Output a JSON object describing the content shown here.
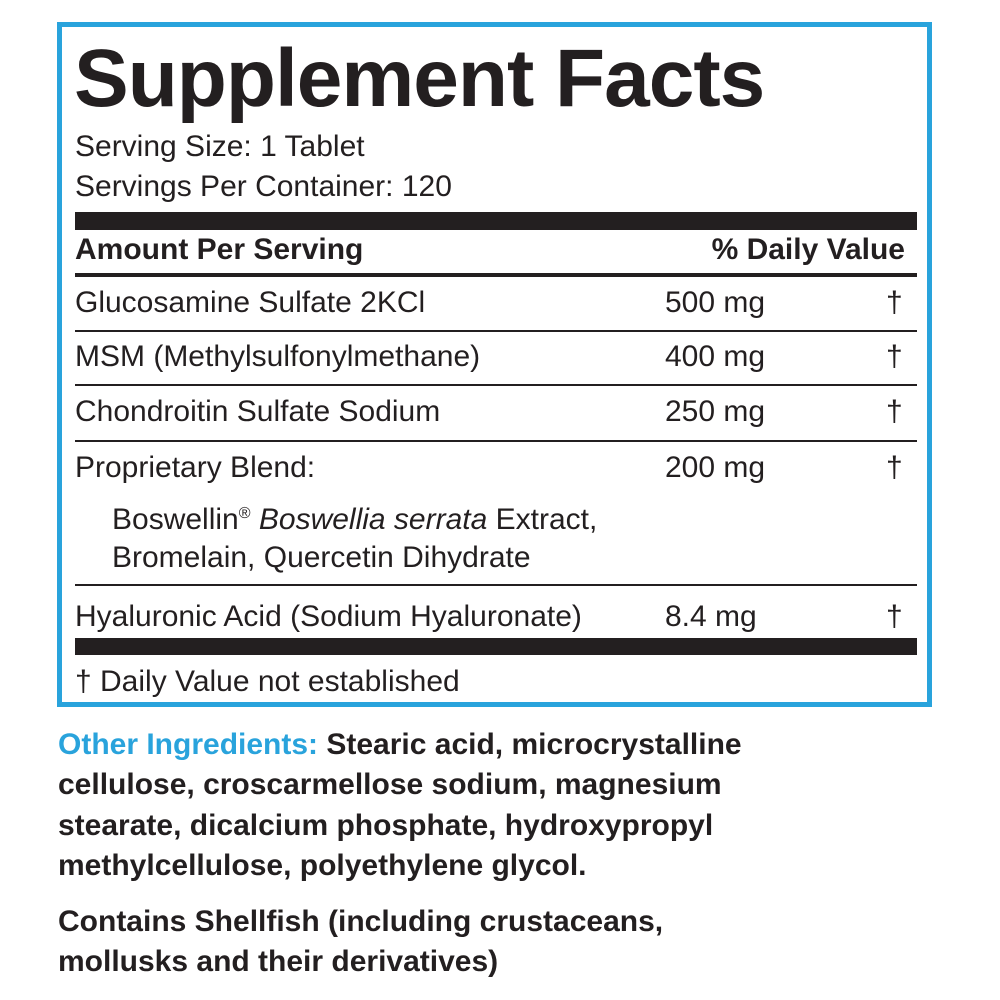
{
  "header": {
    "title": "Supplement Facts",
    "serving_size": "Serving Size: 1 Tablet",
    "servings_per_container": "Servings Per Container: 120"
  },
  "table": {
    "header": [
      "Amount Per Serving",
      "% Daily Value"
    ],
    "rows": [
      [
        "Glucosamine Sulfate 2KCl",
        "500 mg",
        "†"
      ],
      [
        "MSM (Methylsulfonylmethane)",
        "400 mg",
        "†"
      ],
      [
        "Chondroitin Sulfate Sodium",
        "250 mg",
        "†"
      ],
      [
        "Proprietary Blend:",
        "200 mg",
        "†"
      ],
      [
        "Hyaluronic Acid (Sodium Hyaluronate)",
        "8.4 mg",
        "†"
      ]
    ],
    "blend_parts": [
      "Boswellin",
      "®",
      "Boswellia serrata",
      "Extract,",
      "Bromelain, Quercetin Dihydrate"
    ],
    "footnote": "† Daily Value not established"
  },
  "other_ingredients": {
    "label": "Other Ingredients:",
    "lines": [
      "Stearic acid, microcrystalline",
      "cellulose, croscarmellose sodium, magnesium",
      "stearate, dicalcium phosphate, hydroxypropyl",
      "methylcellulose, polyethylene glycol."
    ]
  },
  "allergen": {
    "lines": [
      "Contains Shellfish (including crustaceans,",
      "mollusks and their derivatives)"
    ]
  }
}
